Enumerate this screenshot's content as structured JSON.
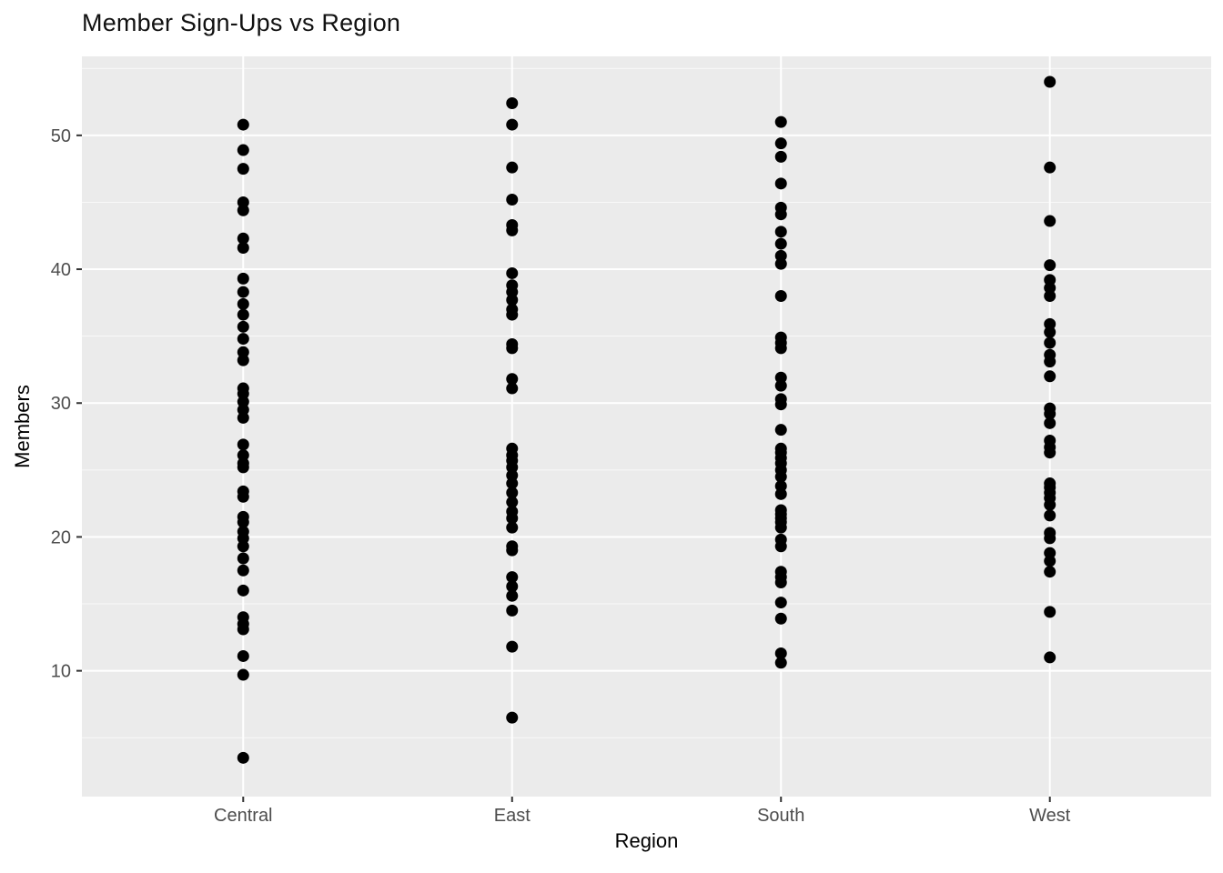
{
  "chart_data": {
    "type": "scatter",
    "title": "Member Sign-Ups vs Region",
    "xlabel": "Region",
    "ylabel": "Members",
    "categories": [
      "Central",
      "East",
      "South",
      "West"
    ],
    "yticks": [
      10,
      20,
      30,
      40,
      50
    ],
    "yticks_minor": [
      5,
      15,
      25,
      35,
      45,
      55
    ],
    "ylim": [
      0.6,
      55.9
    ],
    "grid": true,
    "legend_position": "none",
    "point_radius": 6.5,
    "colors": {
      "panel_bg": "#EBEBEB",
      "grid_major": "#FFFFFF",
      "grid_minor": "#FFFFFF",
      "point": "#000000",
      "tick_label": "#4D4D4D",
      "tick_mark": "#333333",
      "axis_title": "#000000"
    },
    "series": [
      {
        "name": "Central",
        "values": [
          50.8,
          48.9,
          47.5,
          45.0,
          44.4,
          42.3,
          41.6,
          39.3,
          38.3,
          37.4,
          36.6,
          35.7,
          34.8,
          33.8,
          33.2,
          31.1,
          30.7,
          30.1,
          29.5,
          28.9,
          26.9,
          26.1,
          25.5,
          25.2,
          23.4,
          23.0,
          21.5,
          21.1,
          20.4,
          19.9,
          19.3,
          18.4,
          17.5,
          16.0,
          14.0,
          13.5,
          13.1,
          11.1,
          9.7,
          3.5
        ]
      },
      {
        "name": "East",
        "values": [
          52.4,
          50.8,
          47.6,
          45.2,
          43.3,
          42.9,
          39.7,
          38.8,
          38.3,
          37.7,
          37.0,
          36.6,
          34.4,
          34.1,
          31.8,
          31.1,
          26.6,
          26.1,
          25.7,
          25.2,
          24.6,
          24.0,
          23.3,
          22.6,
          21.9,
          21.4,
          20.7,
          19.3,
          19.0,
          17.0,
          16.3,
          15.6,
          14.5,
          11.8,
          6.5
        ]
      },
      {
        "name": "South",
        "values": [
          51.0,
          49.4,
          48.4,
          46.4,
          44.6,
          44.1,
          42.8,
          41.9,
          41.0,
          40.4,
          38.0,
          34.9,
          34.5,
          34.1,
          31.9,
          31.3,
          30.3,
          29.9,
          28.0,
          26.6,
          26.3,
          25.9,
          25.5,
          25.0,
          24.5,
          23.8,
          23.2,
          22.0,
          21.7,
          21.4,
          21.1,
          20.7,
          19.8,
          19.3,
          17.4,
          17.0,
          16.6,
          15.1,
          13.9,
          11.3,
          10.6
        ]
      },
      {
        "name": "West",
        "values": [
          54.0,
          47.6,
          43.6,
          40.3,
          39.2,
          38.6,
          38.0,
          35.9,
          35.3,
          34.5,
          33.6,
          33.1,
          32.0,
          29.6,
          29.2,
          28.5,
          27.2,
          26.7,
          26.3,
          24.0,
          23.7,
          23.3,
          22.9,
          22.4,
          21.6,
          20.3,
          19.9,
          18.8,
          18.2,
          17.4,
          14.4,
          11.0
        ]
      }
    ]
  }
}
